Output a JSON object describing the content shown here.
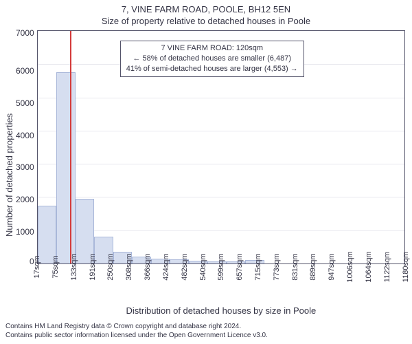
{
  "title": "7, VINE FARM ROAD, POOLE, BH12 5EN",
  "subtitle": "Size of property relative to detached houses in Poole",
  "y_axis_label": "Number of detached properties",
  "x_axis_label": "Distribution of detached houses by size in Poole",
  "chart": {
    "type": "histogram",
    "ylim": [
      0,
      7000
    ],
    "ytick_step": 1000,
    "yticks": [
      7000,
      6000,
      5000,
      4000,
      3000,
      2000,
      1000,
      0
    ],
    "xticks": [
      "17sqm",
      "75sqm",
      "133sqm",
      "191sqm",
      "250sqm",
      "308sqm",
      "366sqm",
      "424sqm",
      "482sqm",
      "540sqm",
      "599sqm",
      "657sqm",
      "715sqm",
      "773sqm",
      "831sqm",
      "889sqm",
      "947sqm",
      "1006sqm",
      "1064sqm",
      "1122sqm",
      "1180sqm"
    ],
    "values": [
      1750,
      5750,
      1950,
      800,
      350,
      200,
      150,
      120,
      80,
      70,
      60,
      100,
      0,
      0,
      0,
      0,
      0,
      0,
      0,
      0
    ],
    "bar_fill": "#d6def0",
    "bar_border": "#a9b7d9",
    "grid_color": "#e8e8ee",
    "axis_color": "#54546a",
    "background_color": "#ffffff",
    "marker_value_sqm": 120,
    "marker_color": "#d43b3b",
    "font_family": "Arial",
    "title_fontsize": 13,
    "tick_fontsize": 12,
    "xtick_fontsize": 11
  },
  "annotation": {
    "line1": "7 VINE FARM ROAD: 120sqm",
    "line2": "← 58% of detached houses are smaller (6,487)",
    "line3": "41% of semi-detached houses are larger (4,553) →",
    "border_color": "#54546a",
    "background_color": "#ffffff",
    "fontsize": 11
  },
  "footer": {
    "line1": "Contains HM Land Registry data © Crown copyright and database right 2024.",
    "line2": "Contains public sector information licensed under the Open Government Licence v3.0."
  }
}
